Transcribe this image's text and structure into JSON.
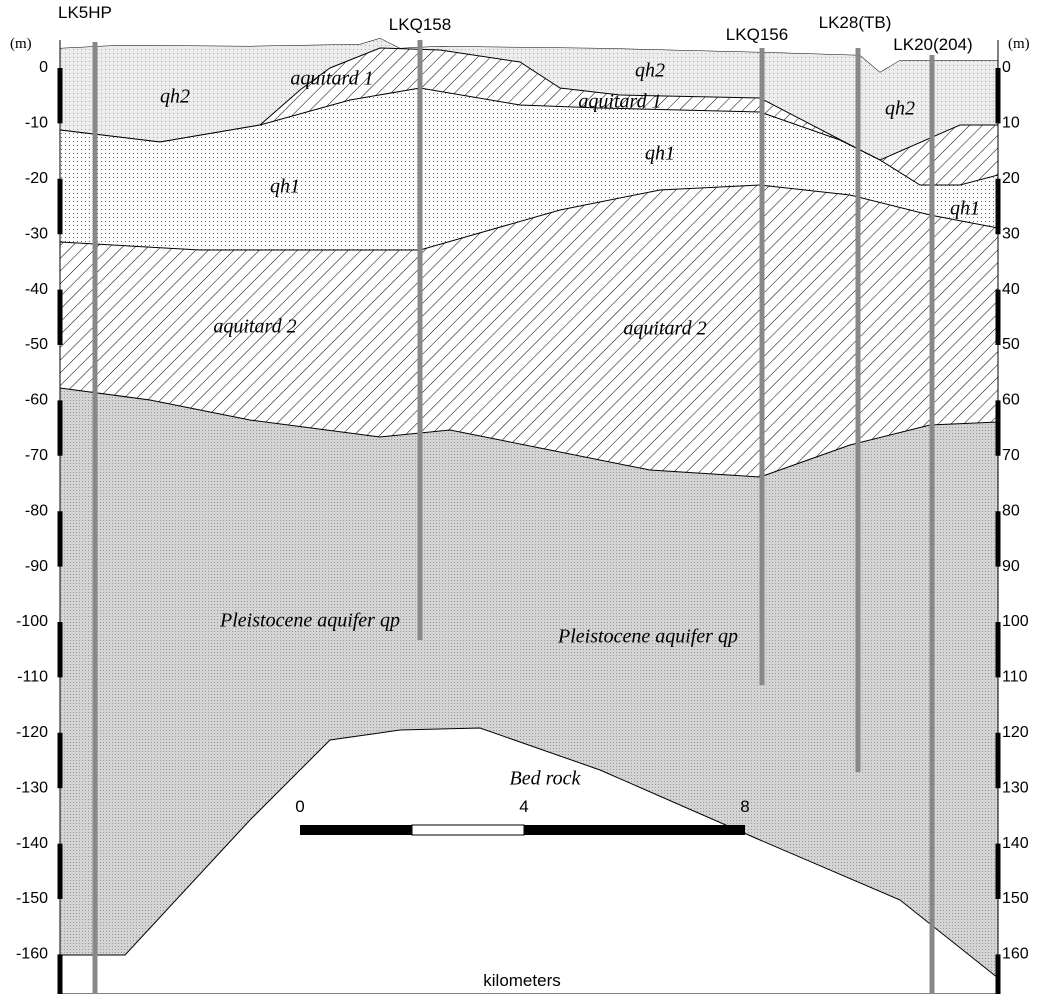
{
  "wells": [
    "LK5HP",
    "LKQ158",
    "LKQ156",
    "LK28(TB)",
    "LK20(204)"
  ],
  "axes": {
    "left": {
      "unit": "(m)",
      "labels": [
        "0",
        "-10",
        "-20",
        "-30",
        "-40",
        "-50",
        "-60",
        "-70",
        "-80",
        "-90",
        "-100",
        "-110",
        "-120",
        "-130",
        "-140",
        "-150",
        "-160"
      ]
    },
    "right": {
      "unit": "(m)",
      "labels": [
        "0",
        "10",
        "20",
        "30",
        "40",
        "50",
        "60",
        "70",
        "80",
        "90",
        "100",
        "110",
        "120",
        "130",
        "140",
        "150",
        "160"
      ]
    }
  },
  "layer_labels": [
    "qh2",
    "aquitard 1",
    "qh2",
    "aquitard 1",
    "qh2",
    "qh1",
    "qh1",
    "qh1",
    "aquitard 2",
    "aquitard 2",
    "Pleistocene aquifer qp",
    "Pleistocene aquifer qp",
    "Bed rock"
  ],
  "scale": {
    "ticks": [
      "0",
      "4",
      "8"
    ],
    "unit": "kilometers"
  }
}
